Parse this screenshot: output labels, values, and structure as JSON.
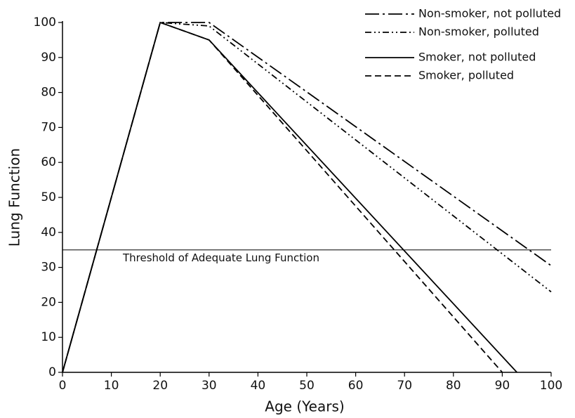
{
  "chart_data": {
    "type": "line",
    "xlabel": "Age (Years)",
    "ylabel": "Lung Function",
    "xlim": [
      0,
      100
    ],
    "ylim": [
      0,
      100
    ],
    "xticks": [
      0,
      10,
      20,
      30,
      40,
      50,
      60,
      70,
      80,
      90,
      100
    ],
    "yticks": [
      0,
      10,
      20,
      30,
      40,
      50,
      60,
      70,
      80,
      90,
      100
    ],
    "grid": false,
    "legend": "upper right",
    "series": [
      {
        "name": "Non-smoker, not polluted",
        "color": "#000000",
        "style": "long-dash-dot",
        "x": [
          0,
          20,
          30,
          100
        ],
        "values": [
          0,
          100,
          100,
          30.5
        ]
      },
      {
        "name": "Non-smoker, polluted",
        "color": "#000000",
        "style": "dash-dot-dot",
        "x": [
          0,
          20,
          30,
          100
        ],
        "values": [
          0,
          100,
          99,
          23
        ]
      },
      {
        "name": "Smoker, not polluted",
        "color": "#000000",
        "style": "solid",
        "x": [
          0,
          20,
          30,
          93
        ],
        "values": [
          0,
          100,
          95,
          0
        ]
      },
      {
        "name": "Smoker, polluted",
        "color": "#000000",
        "style": "dashed",
        "x": [
          0,
          20,
          30,
          90
        ],
        "values": [
          0,
          100,
          95,
          0
        ]
      }
    ],
    "annotations": [
      {
        "text": "Threshold of Adequate Lung Function",
        "y": 35
      }
    ]
  }
}
